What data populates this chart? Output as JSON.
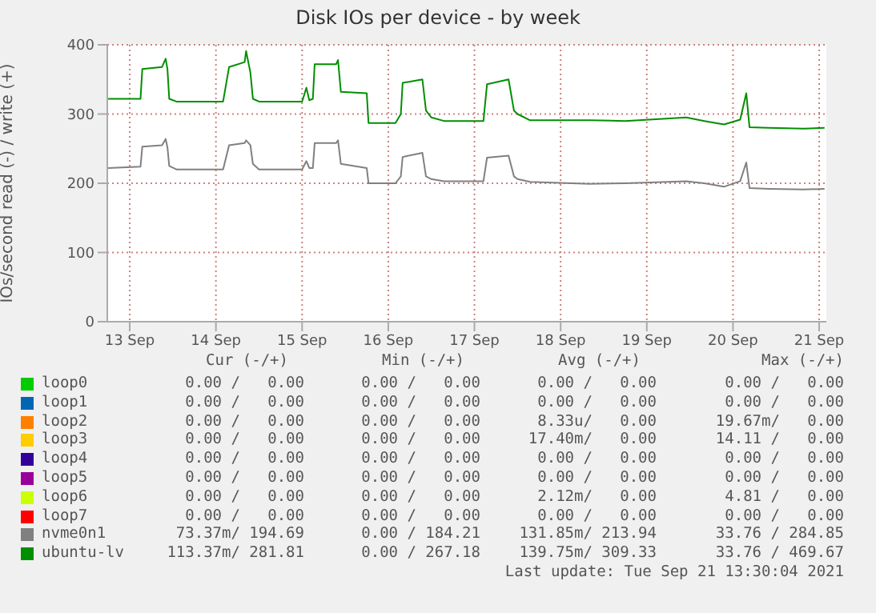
{
  "chart_data": {
    "type": "line",
    "title": "Disk IOs per device - by week",
    "ylabel": "IOs/second read (-) / write (+)",
    "x": [
      "2021-09-13T06:00",
      "2021-09-13T15:00",
      "2021-09-13T15:30",
      "2021-09-13T21:00",
      "2021-09-13T22:00",
      "2021-09-13T22:30",
      "2021-09-13T23:00",
      "2021-09-14T01:00",
      "2021-09-14T14:00",
      "2021-09-14T15:40",
      "2021-09-14T20:00",
      "2021-09-14T20:24",
      "2021-09-14T21:36",
      "2021-09-14T22:18",
      "2021-09-15T00:00",
      "2021-09-15T12:00",
      "2021-09-15T13:12",
      "2021-09-15T14:00",
      "2021-09-15T15:00",
      "2021-09-15T15:30",
      "2021-09-15T21:30",
      "2021-09-15T22:00",
      "2021-09-15T22:48",
      "2021-09-16T06:00",
      "2021-09-16T06:30",
      "2021-09-16T14:00",
      "2021-09-16T15:30",
      "2021-09-16T16:00",
      "2021-09-16T21:30",
      "2021-09-16T22:30",
      "2021-09-17T00:00",
      "2021-09-17T03:30",
      "2021-09-17T14:30",
      "2021-09-17T15:30",
      "2021-09-17T21:30",
      "2021-09-17T23:00",
      "2021-09-18T00:00",
      "2021-09-18T03:30",
      "2021-09-18T20:00",
      "2021-09-19T06:00",
      "2021-09-19T23:00",
      "2021-09-20T04:00",
      "2021-09-20T09:30",
      "2021-09-20T14:00",
      "2021-09-20T15:42",
      "2021-09-20T16:36",
      "2021-09-20T22:00",
      "2021-09-21T07:42",
      "2021-09-21T13:30"
    ],
    "series": [
      {
        "name": "loop0",
        "color": "#00cc00",
        "values": [
          null,
          null,
          null,
          null,
          null,
          null,
          null,
          null,
          null,
          null,
          null,
          null,
          null,
          null,
          null,
          null,
          null,
          null,
          null,
          null,
          null,
          null,
          null,
          null,
          null,
          null,
          null,
          null,
          null,
          null,
          null,
          null,
          null,
          null,
          null,
          null,
          null,
          null,
          null,
          null,
          null,
          null,
          null,
          null,
          null,
          null,
          null,
          null,
          null
        ]
      },
      {
        "name": "loop1",
        "color": "#0066b3",
        "values": [
          null,
          null,
          null,
          null,
          null,
          null,
          null,
          null,
          null,
          null,
          null,
          null,
          null,
          null,
          null,
          null,
          null,
          null,
          null,
          null,
          null,
          null,
          null,
          null,
          null,
          null,
          null,
          null,
          null,
          null,
          null,
          null,
          null,
          null,
          null,
          null,
          null,
          null,
          null,
          null,
          null,
          null,
          null,
          null,
          null,
          null,
          null,
          null,
          null
        ]
      },
      {
        "name": "loop2",
        "color": "#ff8000",
        "values": [
          null,
          null,
          null,
          null,
          null,
          null,
          null,
          null,
          null,
          null,
          null,
          null,
          null,
          null,
          null,
          null,
          null,
          null,
          null,
          null,
          null,
          null,
          null,
          null,
          null,
          null,
          null,
          null,
          null,
          null,
          null,
          null,
          null,
          null,
          null,
          null,
          null,
          null,
          null,
          null,
          null,
          null,
          null,
          null,
          null,
          null,
          null,
          null,
          null
        ]
      },
      {
        "name": "loop3",
        "color": "#ffcc00",
        "values": [
          null,
          null,
          null,
          null,
          null,
          null,
          null,
          null,
          null,
          null,
          null,
          null,
          null,
          null,
          null,
          null,
          null,
          null,
          null,
          null,
          null,
          null,
          null,
          null,
          null,
          null,
          null,
          null,
          null,
          null,
          null,
          null,
          null,
          null,
          null,
          null,
          null,
          null,
          null,
          null,
          null,
          null,
          null,
          null,
          null,
          null,
          null,
          null,
          null
        ]
      },
      {
        "name": "loop4",
        "color": "#330099",
        "values": [
          null,
          null,
          null,
          null,
          null,
          null,
          null,
          null,
          null,
          null,
          null,
          null,
          null,
          null,
          null,
          null,
          null,
          null,
          null,
          null,
          null,
          null,
          null,
          null,
          null,
          null,
          null,
          null,
          null,
          null,
          null,
          null,
          null,
          null,
          null,
          null,
          null,
          null,
          null,
          null,
          null,
          null,
          null,
          null,
          null,
          null,
          null,
          null,
          null
        ]
      },
      {
        "name": "loop5",
        "color": "#990099",
        "values": [
          null,
          null,
          null,
          null,
          null,
          null,
          null,
          null,
          null,
          null,
          null,
          null,
          null,
          null,
          null,
          null,
          null,
          null,
          null,
          null,
          null,
          null,
          null,
          null,
          null,
          null,
          null,
          null,
          null,
          null,
          null,
          null,
          null,
          null,
          null,
          null,
          null,
          null,
          null,
          null,
          null,
          null,
          null,
          null,
          null,
          null,
          null,
          null,
          null
        ]
      },
      {
        "name": "loop6",
        "color": "#ccff00",
        "values": [
          null,
          null,
          null,
          null,
          null,
          null,
          null,
          null,
          null,
          null,
          null,
          null,
          null,
          null,
          null,
          null,
          null,
          null,
          null,
          null,
          null,
          null,
          null,
          null,
          null,
          null,
          null,
          null,
          null,
          null,
          null,
          null,
          null,
          null,
          null,
          null,
          null,
          null,
          null,
          null,
          null,
          null,
          null,
          null,
          null,
          null,
          null,
          null,
          null
        ]
      },
      {
        "name": "loop7",
        "color": "#ff0000",
        "values": [
          null,
          null,
          null,
          null,
          null,
          null,
          null,
          null,
          null,
          null,
          null,
          null,
          null,
          null,
          null,
          null,
          null,
          null,
          null,
          null,
          null,
          null,
          null,
          null,
          null,
          null,
          null,
          null,
          null,
          null,
          null,
          null,
          null,
          null,
          null,
          null,
          null,
          null,
          null,
          null,
          null,
          null,
          null,
          null,
          null,
          null,
          null,
          null,
          null
        ]
      },
      {
        "name": "nvme0n1",
        "color": "#808080",
        "values": [
          222,
          224,
          253,
          255,
          264,
          252,
          225,
          220,
          220,
          255,
          258,
          262,
          255,
          228,
          220,
          220,
          232,
          222,
          222,
          258,
          258,
          262,
          228,
          222,
          200,
          200,
          210,
          238,
          244,
          210,
          206,
          203,
          203,
          237,
          240,
          210,
          206,
          202,
          199,
          200,
          203,
          200,
          195,
          203,
          230,
          193,
          192,
          191,
          192
        ]
      },
      {
        "name": "ubuntu-lv",
        "color": "#008f00",
        "values": [
          322,
          322,
          365,
          368,
          380,
          365,
          322,
          318,
          318,
          368,
          375,
          391,
          360,
          322,
          318,
          318,
          338,
          320,
          322,
          372,
          372,
          378,
          332,
          330,
          287,
          287,
          300,
          345,
          350,
          305,
          295,
          290,
          290,
          343,
          350,
          305,
          300,
          291,
          291,
          290,
          295,
          290,
          285,
          292,
          330,
          281,
          280,
          279,
          280
        ]
      }
    ],
    "xlim": [
      "2021-09-13T05:45",
      "2021-09-21T14:00"
    ],
    "xticks": [
      {
        "value": "2021-09-13T12:00",
        "label": "13 Sep"
      },
      {
        "value": "2021-09-14T12:00",
        "label": "14 Sep"
      },
      {
        "value": "2021-09-15T12:00",
        "label": "15 Sep"
      },
      {
        "value": "2021-09-16T12:00",
        "label": "16 Sep"
      },
      {
        "value": "2021-09-17T12:00",
        "label": "17 Sep"
      },
      {
        "value": "2021-09-18T12:00",
        "label": "18 Sep"
      },
      {
        "value": "2021-09-19T12:00",
        "label": "19 Sep"
      },
      {
        "value": "2021-09-20T12:00",
        "label": "20 Sep"
      },
      {
        "value": "2021-09-21T12:00",
        "label": "21 Sep"
      }
    ],
    "ylim": [
      0,
      400
    ],
    "yticks": [
      0,
      100,
      200,
      300,
      400
    ],
    "grid": true,
    "legend": "bottom",
    "marker": "none",
    "line_style": "solid",
    "annotations": [
      "Cur (-/+)",
      "Min (-/+)",
      "Avg (-/+)",
      "Max (-/+)",
      "0.00 /   0.00",
      "0.00 /   0.00",
      "0.00 /   0.00",
      "0.00 /   0.00",
      "0.00 /   0.00",
      "0.00 /   0.00",
      "0.00 /   0.00",
      "0.00 /   0.00",
      "0.00 /   0.00",
      "0.00 /   0.00",
      "8.33u/   0.00",
      "19.67m/   0.00",
      "0.00 /   0.00",
      "0.00 /   0.00",
      "17.40m/   0.00",
      "14.11 /   0.00",
      "0.00 /   0.00",
      "0.00 /   0.00",
      "0.00 /   0.00",
      "0.00 /   0.00",
      "0.00 /   0.00",
      "0.00 /   0.00",
      "0.00 /   0.00",
      "0.00 /   0.00",
      "0.00 /   0.00",
      "0.00 /   0.00",
      "2.12m/   0.00",
      "4.81 /   0.00",
      "0.00 /   0.00",
      "0.00 /   0.00",
      "0.00 /   0.00",
      "0.00 /   0.00",
      "73.37m/ 194.69",
      "0.00 / 184.21",
      "131.85m/ 213.94",
      "33.76 / 284.85",
      "113.37m/ 281.81",
      "0.00 / 267.18",
      "139.75m/ 309.33",
      "33.76 / 469.67",
      "Last update: Tue Sep 21 13:30:04 2021"
    ]
  }
}
